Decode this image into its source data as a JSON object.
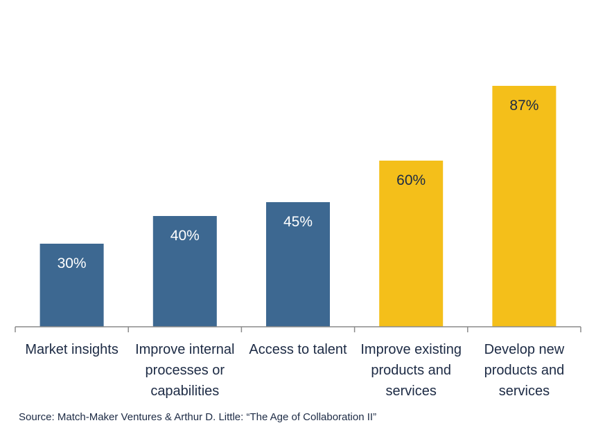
{
  "chart_data": {
    "type": "bar",
    "categories": [
      [
        "Market insights"
      ],
      [
        "Improve internal",
        "processes or",
        "capabilities"
      ],
      [
        "Access to talent"
      ],
      [
        "Improve existing",
        "products and",
        "services"
      ],
      [
        "Develop new",
        "products and",
        "services"
      ]
    ],
    "values": [
      30,
      40,
      45,
      60,
      87
    ],
    "value_labels": [
      "30%",
      "40%",
      "45%",
      "60%",
      "87%"
    ],
    "ylim": [
      0,
      100
    ],
    "grid": false,
    "legend": "none",
    "colors": {
      "primary": "#3d6891",
      "highlight": "#f4bf1a",
      "label_on_primary": "#ffffff",
      "label_on_highlight": "#1c2a44",
      "axis": "#8a8a8a",
      "text": "#1c2a44"
    },
    "highlighted_indices": [
      3,
      4
    ]
  },
  "source": "Source: Match-Maker Ventures & Arthur D. Little: “The Age of Collaboration II”"
}
